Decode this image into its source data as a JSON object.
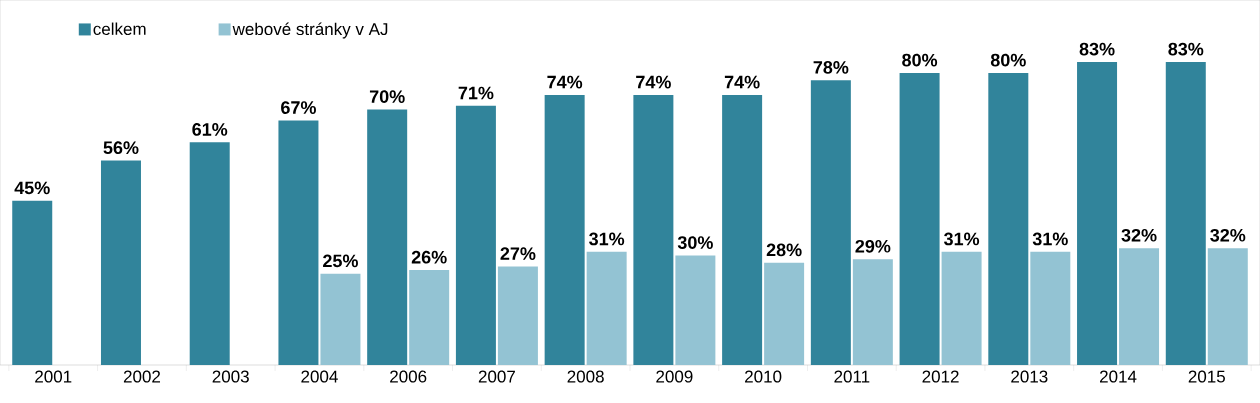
{
  "chart_data": {
    "type": "bar",
    "categories": [
      "2001",
      "2002",
      "2003",
      "2004",
      "2006",
      "2007",
      "2008",
      "2009",
      "2010",
      "2011",
      "2012",
      "2013",
      "2014",
      "2015"
    ],
    "series": [
      {
        "name": "celkem",
        "color": "#31849b",
        "values": [
          45,
          56,
          61,
          67,
          70,
          71,
          74,
          74,
          74,
          78,
          80,
          80,
          83,
          83
        ],
        "value_labels": [
          "45%",
          "56%",
          "61%",
          "67%",
          "70%",
          "71%",
          "74%",
          "74%",
          "74%",
          "78%",
          "80%",
          "80%",
          "83%",
          "83%"
        ]
      },
      {
        "name": "webové stránky v AJ",
        "color": "#93c3d3",
        "values": [
          null,
          null,
          null,
          25,
          26,
          27,
          31,
          30,
          28,
          29,
          31,
          31,
          32,
          32
        ],
        "value_labels": [
          null,
          null,
          null,
          "25%",
          "26%",
          "27%",
          "31%",
          "30%",
          "28%",
          "29%",
          "31%",
          "31%",
          "32%",
          "32%"
        ]
      }
    ],
    "ylim": [
      0,
      100
    ],
    "legend": "top left"
  }
}
